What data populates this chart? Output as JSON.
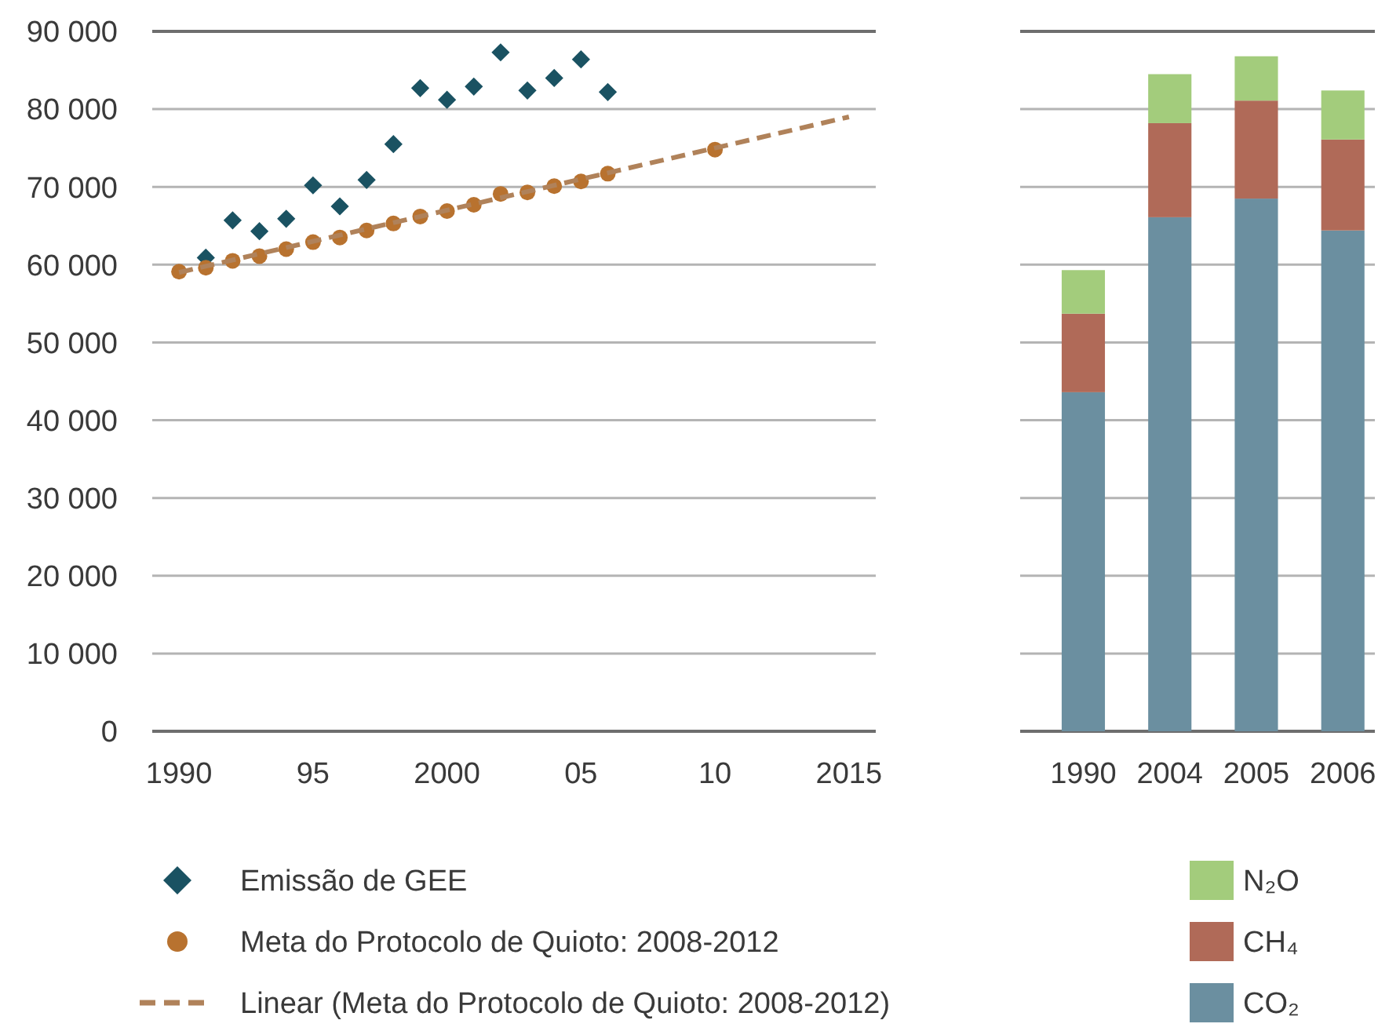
{
  "chart_data": [
    {
      "type": "scatter",
      "series": [
        {
          "name": "Emissão de GEE",
          "marker": "diamond",
          "color": "#1a5262",
          "x": [
            1991,
            1992,
            1993,
            1994,
            1995,
            1996,
            1997,
            1998,
            1999,
            2000,
            2001,
            2002,
            2003,
            2004,
            2005,
            2006
          ],
          "values": [
            60900,
            65700,
            64300,
            65900,
            70200,
            67500,
            70900,
            75500,
            82700,
            81200,
            82900,
            87300,
            82400,
            84000,
            86400,
            82200
          ]
        },
        {
          "name": "Meta do Protocolo de Quioto: 2008-2012",
          "marker": "circle",
          "color": "#b8722f",
          "x": [
            1990,
            1991,
            1992,
            1993,
            1994,
            1995,
            1996,
            1997,
            1998,
            1999,
            2000,
            2001,
            2002,
            2003,
            2004,
            2005,
            2006,
            2010
          ],
          "values": [
            59100,
            59600,
            60500,
            61100,
            62000,
            62900,
            63500,
            64400,
            65300,
            66200,
            66900,
            67700,
            69100,
            69300,
            70100,
            70700,
            71700,
            74800
          ]
        },
        {
          "name": "Linear (Meta do Protocolo de Quioto: 2008-2012)",
          "type": "line",
          "line_style": "dashed",
          "color": "#b0825a",
          "x": [
            1990,
            2015
          ],
          "values": [
            59000,
            79000
          ]
        }
      ],
      "xlim": [
        1989,
        2016
      ],
      "xticks": [
        1990,
        {
          "value": 1995,
          "label": "95"
        },
        2000,
        {
          "value": 2005,
          "label": "05"
        },
        {
          "value": 2010,
          "label": "10"
        },
        2015
      ],
      "ylim": [
        0,
        90000
      ],
      "yticks": [
        0,
        {
          "value": 10000,
          "label": "10 000"
        },
        {
          "value": 20000,
          "label": "20 000"
        },
        {
          "value": 30000,
          "label": "30 000"
        },
        {
          "value": 40000,
          "label": "40 000"
        },
        {
          "value": 50000,
          "label": "50 000"
        },
        {
          "value": 60000,
          "label": "60 000"
        },
        {
          "value": 70000,
          "label": "70 000"
        },
        {
          "value": 80000,
          "label": "80 000"
        },
        {
          "value": 90000,
          "label": "90 000"
        }
      ],
      "grid": "y",
      "legend": "bottom"
    },
    {
      "type": "bar",
      "stacked": true,
      "categories": [
        "1990",
        "2004",
        "2005",
        "2006"
      ],
      "series": [
        {
          "name": "CO₂",
          "color": "#6b8fa0",
          "values": [
            43600,
            66100,
            68500,
            64400
          ]
        },
        {
          "name": "CH₄",
          "color": "#b06a58",
          "values": [
            10100,
            12100,
            12600,
            11700
          ]
        },
        {
          "name": "N₂O",
          "color": "#a3cc7c",
          "values": [
            5600,
            6300,
            5700,
            6300
          ]
        }
      ],
      "ylim": [
        0,
        90000
      ],
      "yticks": [
        0,
        10000,
        20000,
        30000,
        40000,
        50000,
        60000,
        70000,
        80000,
        90000
      ],
      "tick_labels": "x",
      "grid": "y",
      "legend": "bottom right"
    }
  ]
}
